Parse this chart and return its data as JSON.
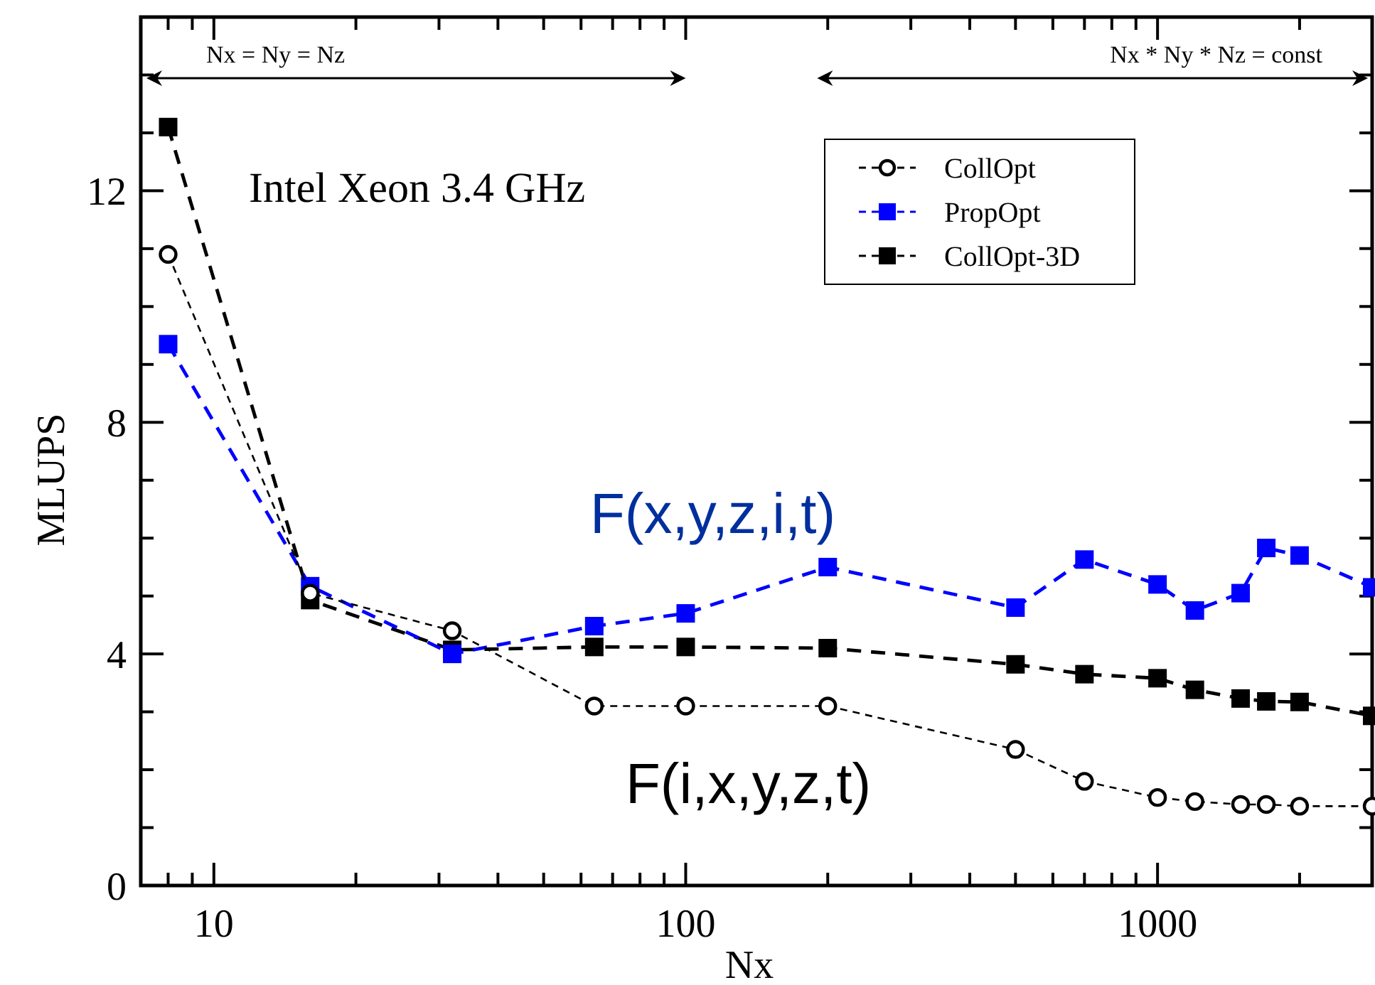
{
  "chart_data": {
    "type": "line",
    "xlabel": "Nx",
    "ylabel": "MLUPS",
    "log": "x",
    "x": [
      8,
      16,
      32,
      64,
      100,
      200,
      500,
      700,
      1000,
      1200,
      1500,
      1700,
      2000,
      2850
    ],
    "series": [
      {
        "name": "CollOpt",
        "color": "#000000",
        "marker": "circle",
        "values": [
          10.9,
          5.05,
          4.4,
          3.1,
          3.1,
          3.1,
          2.35,
          1.8,
          1.52,
          1.45,
          1.4,
          1.4,
          1.37,
          1.37
        ]
      },
      {
        "name": "PropOpt",
        "color": "#0000ff",
        "marker": "square",
        "values": [
          9.35,
          5.17,
          4.0,
          4.48,
          4.7,
          5.5,
          4.8,
          5.63,
          5.2,
          4.75,
          5.05,
          5.83,
          5.7,
          5.15
        ]
      },
      {
        "name": "CollOpt-3D",
        "color": "#000000",
        "marker": "square",
        "values": [
          13.1,
          4.93,
          4.07,
          4.12,
          4.12,
          4.1,
          3.82,
          3.65,
          3.58,
          3.38,
          3.23,
          3.18,
          3.17,
          2.93
        ]
      }
    ],
    "line_style": "dashed",
    "legend": "top right",
    "grid": false,
    "xlim": [
      7,
      2850
    ],
    "xticks": [
      {
        "value": 7,
        "label": null
      },
      {
        "value": 8,
        "label": null
      },
      {
        "value": 9,
        "label": null
      },
      10,
      {
        "value": 20,
        "label": null
      },
      {
        "value": 30,
        "label": null
      },
      {
        "value": 40,
        "label": null
      },
      {
        "value": 50,
        "label": null
      },
      {
        "value": 60,
        "label": null
      },
      {
        "value": 70,
        "label": null
      },
      {
        "value": 80,
        "label": null
      },
      {
        "value": 90,
        "label": null
      },
      100,
      {
        "value": 200,
        "label": null
      },
      {
        "value": 300,
        "label": null
      },
      {
        "value": 400,
        "label": null
      },
      {
        "value": 500,
        "label": null
      },
      {
        "value": 600,
        "label": null
      },
      {
        "value": 700,
        "label": null
      },
      {
        "value": 800,
        "label": null
      },
      {
        "value": 900,
        "label": null
      },
      1000,
      {
        "value": 2000,
        "label": null
      }
    ],
    "ylim": [
      0,
      15
    ],
    "yticks": [
      0,
      {
        "value": 1,
        "label": null
      },
      {
        "value": 2,
        "label": null
      },
      {
        "value": 3,
        "label": null
      },
      4,
      {
        "value": 5,
        "label": null
      },
      {
        "value": 6,
        "label": null
      },
      {
        "value": 7,
        "label": null
      },
      8,
      {
        "value": 9,
        "label": null
      },
      {
        "value": 10,
        "label": null
      },
      {
        "value": 11,
        "label": null
      },
      12,
      {
        "value": 13,
        "label": null
      },
      {
        "value": 14,
        "label": null
      }
    ],
    "annotations": [
      "Intel Xeon 3.4 GHz",
      "Nx = Ny = Nz",
      "Nx * Ny * Nz = const",
      "F(x,y,z,i,t)",
      "F(i,x,y,z,t)"
    ]
  }
}
